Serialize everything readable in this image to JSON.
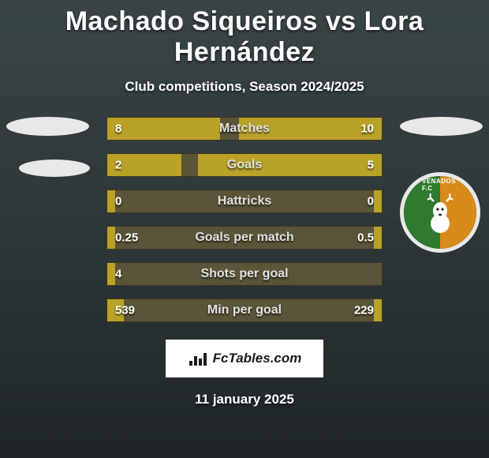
{
  "title": "Machado Siqueiros vs Lora Hernández",
  "subtitle": "Club competitions, Season 2024/2025",
  "footer_brand": "FcTables.com",
  "footer_date": "11 january 2025",
  "colors": {
    "bar_fill": "#b9a227",
    "bar_bg": "#5a5438",
    "page_bg_top": "#3a4548",
    "page_bg_bottom": "#202628",
    "badge_ring": "#e8e8e8",
    "badge_left": "#2f7a2f",
    "badge_right": "#d88a1a"
  },
  "badge_text": "VENADOS F.C",
  "stats": [
    {
      "label": "Matches",
      "left_val": "8",
      "right_val": "10",
      "left_pct": 41,
      "right_pct": 52
    },
    {
      "label": "Goals",
      "left_val": "2",
      "right_val": "5",
      "left_pct": 27,
      "right_pct": 67
    },
    {
      "label": "Hattricks",
      "left_val": "0",
      "right_val": "0",
      "left_pct": 3,
      "right_pct": 3
    },
    {
      "label": "Goals per match",
      "left_val": "0.25",
      "right_val": "0.5",
      "left_pct": 3,
      "right_pct": 3
    },
    {
      "label": "Shots per goal",
      "left_val": "4",
      "right_val": "",
      "left_pct": 3,
      "right_pct": 0
    },
    {
      "label": "Min per goal",
      "left_val": "539",
      "right_val": "229",
      "left_pct": 6,
      "right_pct": 3
    }
  ]
}
